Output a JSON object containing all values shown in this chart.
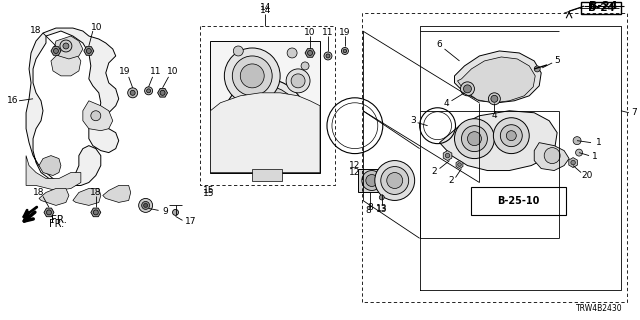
{
  "bg": "#ffffff",
  "lc": "#000000",
  "part_number": "TRW4B2430",
  "b24_label": "B-24",
  "b2510_label": "B-25-10",
  "fr_label": "FR."
}
